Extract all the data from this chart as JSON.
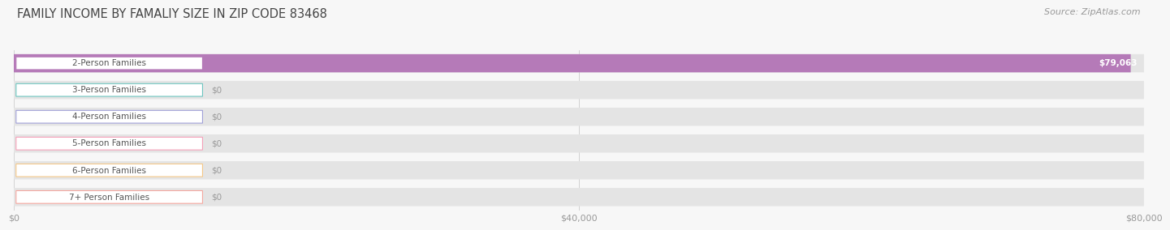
{
  "title": "FAMILY INCOME BY FAMALIY SIZE IN ZIP CODE 83468",
  "source": "Source: ZipAtlas.com",
  "categories": [
    "2-Person Families",
    "3-Person Families",
    "4-Person Families",
    "5-Person Families",
    "6-Person Families",
    "7+ Person Families"
  ],
  "values": [
    79063,
    0,
    0,
    0,
    0,
    0
  ],
  "bar_colors": [
    "#b57ab8",
    "#6cc5bf",
    "#a0a0d8",
    "#f5a0b8",
    "#f5c888",
    "#f5a8a0"
  ],
  "max_value": 80000,
  "xtick_values": [
    0,
    40000,
    80000
  ],
  "xtick_labels": [
    "$0",
    "$40,000",
    "$80,000"
  ],
  "background_color": "#f7f7f7",
  "bar_bg_color": "#e4e4e4",
  "title_fontsize": 10.5,
  "source_fontsize": 8,
  "label_fontsize": 7.5,
  "value_fontsize": 7.5
}
